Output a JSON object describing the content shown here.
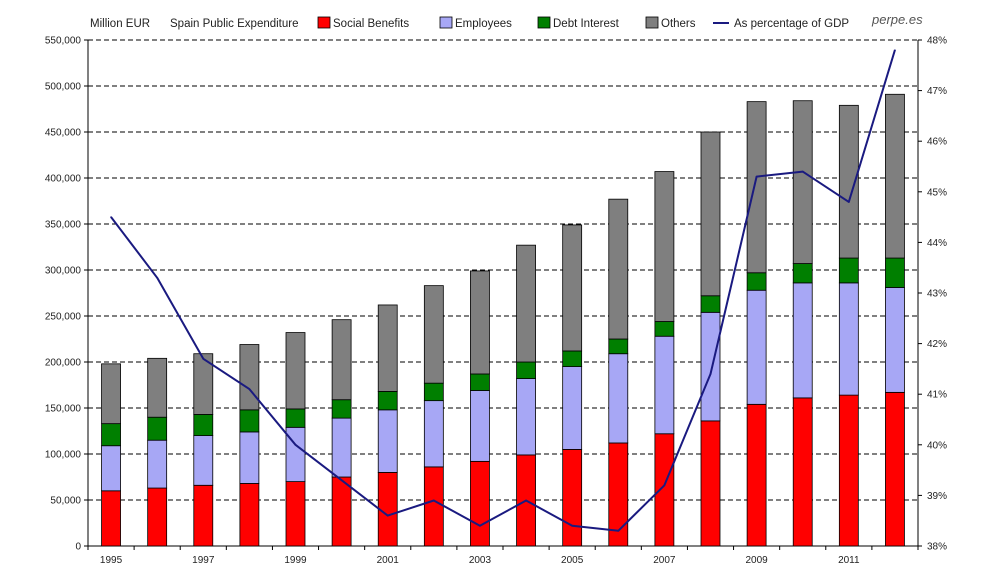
{
  "chart_data": {
    "type": "bar",
    "stacked": true,
    "left_axis_unit": "Million EUR",
    "subtitle": "Spain Public Expenditure",
    "watermark": "perpe.es",
    "x": [
      "1995",
      "1996",
      "1997",
      "1998",
      "1999",
      "2000",
      "2001",
      "2002",
      "2003",
      "2004",
      "2005",
      "2006",
      "2007",
      "2008",
      "2009",
      "2010",
      "2011",
      "2012"
    ],
    "x_tick_labels": [
      "1995",
      "1997",
      "1999",
      "2001",
      "2003",
      "2005",
      "2007",
      "2009",
      "2011"
    ],
    "y_ticks": [
      "0",
      "50,000",
      "100,000",
      "150,000",
      "200,000",
      "250,000",
      "300,000",
      "350,000",
      "400,000",
      "450,000",
      "500,000",
      "550,000"
    ],
    "y_lim": [
      0,
      550000
    ],
    "y2_ticks": [
      "38%",
      "39%",
      "40%",
      "41%",
      "42%",
      "43%",
      "44%",
      "45%",
      "46%",
      "47%",
      "48%"
    ],
    "y2_lim": [
      38,
      48
    ],
    "grid": "horizontal dashed",
    "legend_position": "top",
    "series": [
      {
        "name": "Social Benefits",
        "type": "bar",
        "color": "#ff0000",
        "values": [
          60000,
          63000,
          66000,
          68000,
          70000,
          75000,
          80000,
          86000,
          92000,
          99000,
          105000,
          112000,
          122000,
          136000,
          154000,
          161000,
          164000,
          167000
        ]
      },
      {
        "name": "Employees",
        "type": "bar",
        "color": "#a7a7f5",
        "values": [
          49000,
          52000,
          54000,
          56000,
          59000,
          64000,
          68000,
          72000,
          77000,
          83000,
          90000,
          97000,
          106000,
          118000,
          124000,
          125000,
          122000,
          114000
        ]
      },
      {
        "name": "Debt Interest",
        "type": "bar",
        "color": "#007f00",
        "values": [
          24000,
          25000,
          23000,
          24000,
          20000,
          20000,
          20000,
          19000,
          18000,
          18000,
          17000,
          16000,
          16000,
          18000,
          19000,
          21000,
          27000,
          32000
        ]
      },
      {
        "name": "Others",
        "type": "bar",
        "color": "#7f7f7f",
        "values": [
          65000,
          64000,
          66000,
          71000,
          83000,
          87000,
          94000,
          106000,
          112000,
          127000,
          137000,
          152000,
          163000,
          178000,
          186000,
          177000,
          166000,
          178000
        ]
      },
      {
        "name": "As percentage of GDP",
        "type": "line",
        "axis": "right",
        "color": "#1a1a80",
        "values": [
          44.5,
          43.3,
          41.7,
          41.1,
          40.0,
          39.3,
          38.6,
          38.9,
          38.4,
          38.9,
          38.4,
          38.3,
          39.2,
          41.4,
          45.3,
          45.4,
          44.8,
          47.8
        ]
      }
    ]
  }
}
